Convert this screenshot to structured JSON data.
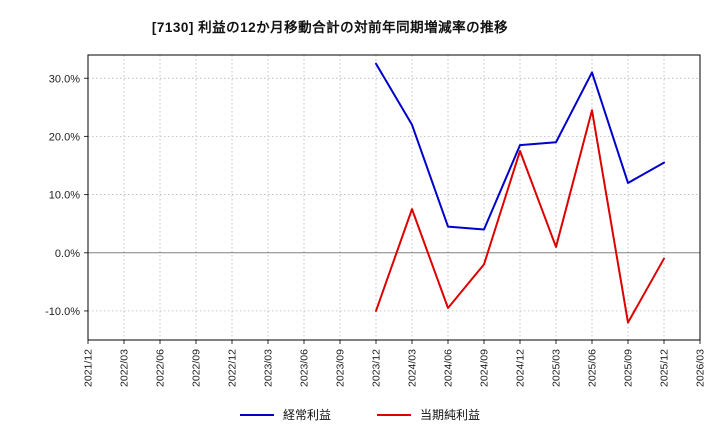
{
  "chart_data": {
    "type": "line",
    "title": "[7130]  利益の12か月移動合計の対前年同期増減率の推移",
    "categories": [
      "2021/12",
      "2022/03",
      "2022/06",
      "2022/09",
      "2022/12",
      "2023/03",
      "2023/06",
      "2023/09",
      "2023/12",
      "2024/03",
      "2024/06",
      "2024/09",
      "2024/12",
      "2025/03",
      "2025/06",
      "2025/09",
      "2025/12",
      "2026/03"
    ],
    "series": [
      {
        "name": "経常利益",
        "color": "#0000cc",
        "values": [
          null,
          null,
          null,
          null,
          null,
          null,
          null,
          null,
          32.5,
          22.0,
          4.5,
          4.0,
          18.5,
          19.0,
          31.0,
          12.0,
          15.5,
          null
        ]
      },
      {
        "name": "当期純利益",
        "color": "#dd0000",
        "values": [
          null,
          null,
          null,
          null,
          null,
          null,
          null,
          null,
          -10.0,
          7.5,
          -9.5,
          -2.0,
          17.5,
          1.0,
          24.5,
          -12.0,
          -1.0,
          null
        ]
      }
    ],
    "ylim": [
      -15,
      34
    ],
    "yticks": [
      -10,
      0,
      10,
      20,
      30
    ],
    "ytick_format": "percent_1dp",
    "xlabel": "",
    "ylabel": "",
    "grid": true,
    "legend_position": "bottom"
  }
}
